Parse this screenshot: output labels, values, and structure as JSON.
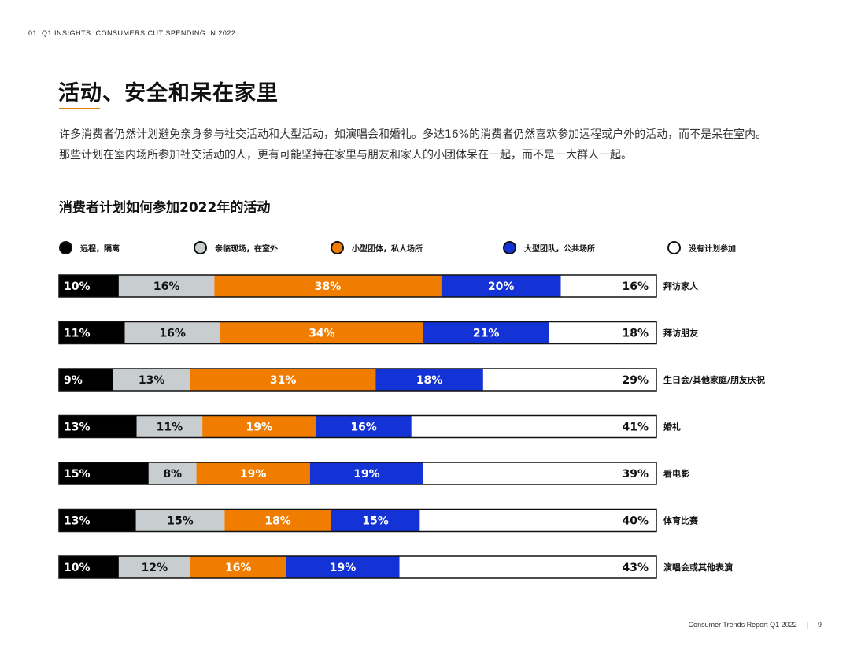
{
  "header": {
    "kicker": "01. Q1 INSIGHTS: CONSUMERS CUT SPENDING IN 2022"
  },
  "section": {
    "title": "活动、安全和呆在家里",
    "intro": "许多消费者仍然计划避免亲身参与社交活动和大型活动，如演唱会和婚礼。多达16%的消费者仍然喜欢参加远程或户外的活动，而不是呆在室内。那些计划在室内场所参加社交活动的人，更有可能坚持在家里与朋友和家人的小团体呆在一起，而不是一大群人一起。"
  },
  "footer": {
    "report": "Consumer Trends Report Q1 2022",
    "separator": "|",
    "page": "9"
  },
  "chart_data": {
    "type": "bar",
    "orientation": "horizontal",
    "stacked": "100%",
    "title": "消费者计划如何参加2022年的活动",
    "legend_position": "top",
    "series": [
      {
        "name": "远程，隔离",
        "color": "#000000",
        "text_color": "#ffffff",
        "values": [
          10,
          11,
          9,
          13,
          15,
          13,
          10
        ]
      },
      {
        "name": "亲临现场，在室外",
        "color": "#c8cdd0",
        "text_color": "#111111",
        "values": [
          16,
          16,
          13,
          11,
          8,
          15,
          12
        ]
      },
      {
        "name": "小型团体，私人场所",
        "color": "#f07d00",
        "text_color": "#ffffff",
        "values": [
          38,
          34,
          31,
          19,
          19,
          18,
          16
        ]
      },
      {
        "name": "大型团队，公共场所",
        "color": "#1433d6",
        "text_color": "#ffffff",
        "values": [
          20,
          21,
          18,
          16,
          19,
          15,
          19
        ]
      },
      {
        "name": "没有计划参加",
        "color": "#ffffff",
        "text_color": "#111111",
        "values": [
          16,
          18,
          29,
          41,
          39,
          40,
          43
        ]
      }
    ],
    "categories": [
      "拜访家人",
      "拜访朋友",
      "生日会/其他家庭/朋友庆祝",
      "婚礼",
      "看电影",
      "体育比赛",
      "演唱会或其他表演"
    ],
    "value_suffix": "%"
  }
}
